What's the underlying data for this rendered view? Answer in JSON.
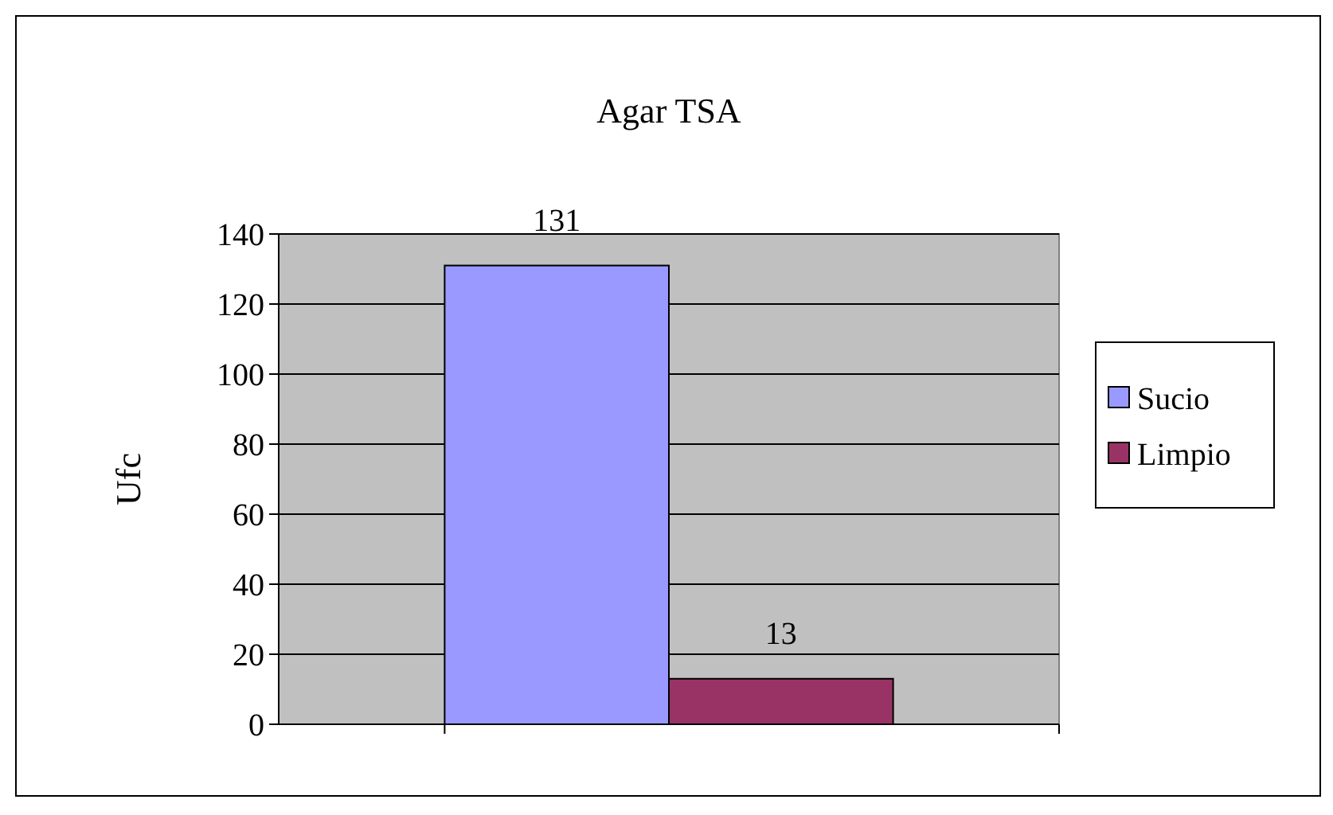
{
  "chart_data": {
    "type": "bar",
    "title": "Agar TSA",
    "ylabel": "Ufc",
    "categories": [
      null
    ],
    "series": [
      {
        "name": "Sucio",
        "color": "#9999ff",
        "values": [
          131
        ]
      },
      {
        "name": "Limpio",
        "color": "#993366",
        "values": [
          13
        ]
      }
    ],
    "ylim": [
      0,
      140
    ],
    "yticks": [
      0,
      20,
      40,
      60,
      80,
      100,
      120,
      140
    ],
    "grid": "y",
    "legend": "right",
    "data_labels": true
  }
}
